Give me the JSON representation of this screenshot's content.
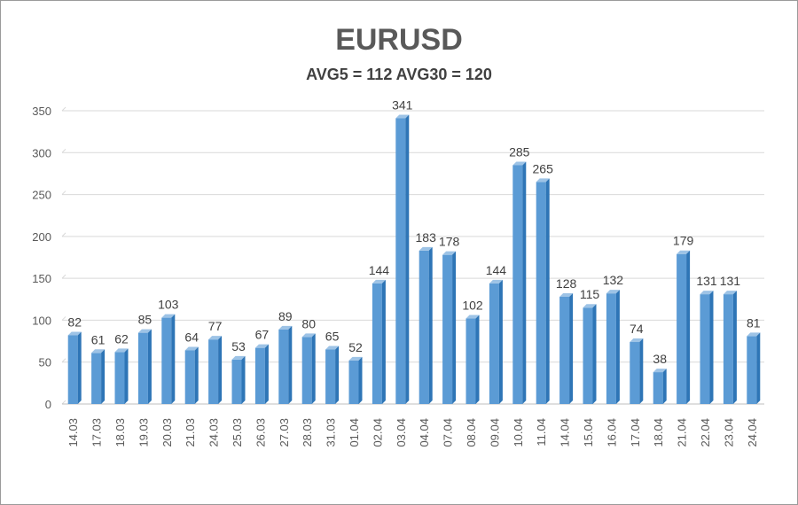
{
  "chart_data": {
    "type": "bar",
    "title": "EURUSD",
    "subtitle": "AVG5 = 112 AVG30 = 120",
    "xlabel": "",
    "ylabel": "",
    "ylim": [
      0,
      350
    ],
    "yticks": [
      0,
      50,
      100,
      150,
      200,
      250,
      300,
      350
    ],
    "grid": true,
    "categories": [
      "14.03",
      "17.03",
      "18.03",
      "19.03",
      "20.03",
      "21.03",
      "24.03",
      "25.03",
      "26.03",
      "27.03",
      "28.03",
      "31.03",
      "01.04",
      "02.04",
      "03.04",
      "04.04",
      "07.04",
      "08.04",
      "09.04",
      "10.04",
      "11.04",
      "14.04",
      "15.04",
      "16.04",
      "17.04",
      "18.04",
      "21.04",
      "22.04",
      "23.04",
      "24.04"
    ],
    "values": [
      82,
      61,
      62,
      85,
      103,
      64,
      77,
      53,
      67,
      89,
      80,
      65,
      52,
      144,
      341,
      183,
      178,
      102,
      144,
      285,
      265,
      128,
      115,
      132,
      74,
      38,
      179,
      131,
      131,
      81
    ],
    "colors": {
      "bar_front": "#5b9bd5",
      "bar_top": "#9dc3e6",
      "bar_side": "#2e75b6",
      "grid": "#d9d9d9"
    }
  }
}
